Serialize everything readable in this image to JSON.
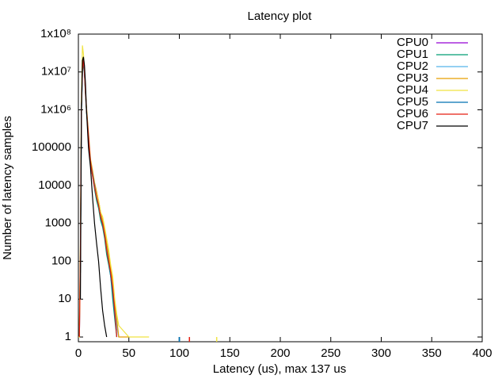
{
  "chart_data": {
    "type": "line",
    "title": "Latency plot",
    "x_label": "Latency (us), max 137 us",
    "y_label": "Number of latency samples",
    "log_y": true,
    "step": true,
    "legend": "top-right",
    "xlim": [
      0,
      400
    ],
    "xticks": [
      0,
      50,
      100,
      150,
      200,
      250,
      300,
      350,
      400
    ],
    "ylim": [
      0.75,
      100000000
    ],
    "yticks": [
      1,
      10,
      100,
      1000,
      10000,
      100000,
      {
        "value": 1000000,
        "label": "1x10⁶"
      },
      {
        "value": 10000000,
        "label": "1x10⁷"
      },
      {
        "value": 100000000,
        "label": "1x10⁸"
      }
    ],
    "x": [
      0,
      1,
      2,
      3,
      4,
      5,
      6,
      7,
      8,
      10,
      12,
      14,
      16,
      18,
      20,
      22,
      24,
      26,
      28,
      30,
      32,
      34,
      36,
      38,
      40,
      50,
      60,
      70,
      100,
      110,
      137
    ],
    "series": [
      {
        "name": "CPU0",
        "color": "#9400d3",
        "values": [
          null,
          1,
          100,
          1000000,
          10000000,
          20000000,
          10000000,
          3000000,
          1000000,
          200000,
          40000,
          20000,
          10000,
          5000,
          3000,
          1500,
          1000,
          500,
          200,
          100,
          50,
          20,
          5,
          2,
          1,
          null,
          null,
          null,
          1,
          null,
          null
        ]
      },
      {
        "name": "CPU1",
        "color": "#009e73",
        "values": [
          null,
          null,
          50,
          800000,
          9000000,
          18000000,
          9000000,
          2500000,
          900000,
          180000,
          35000,
          18000,
          8000,
          4000,
          2500,
          1200,
          800,
          400,
          150,
          80,
          40,
          10,
          3,
          1,
          null,
          null,
          null,
          null,
          1,
          null,
          null
        ]
      },
      {
        "name": "CPU2",
        "color": "#56b4e9",
        "values": [
          null,
          1,
          80,
          900000,
          12000000,
          22000000,
          11000000,
          3000000,
          1100000,
          220000,
          45000,
          20000,
          9000,
          6000,
          3500,
          1800,
          1000,
          600,
          250,
          120,
          60,
          25,
          6,
          2,
          1,
          null,
          null,
          null,
          null,
          null,
          null
        ]
      },
      {
        "name": "CPU3",
        "color": "#e69f00",
        "values": [
          null,
          2,
          200,
          1200000,
          15000000,
          25000000,
          12000000,
          3500000,
          1200000,
          250000,
          50000,
          25000,
          12000,
          7000,
          4000,
          2000,
          1200,
          700,
          300,
          150,
          60,
          30,
          8,
          3,
          1,
          1,
          null,
          null,
          null,
          null,
          null
        ]
      },
      {
        "name": "CPU4",
        "color": "#f0e442",
        "values": [
          1,
          1,
          300,
          2000000,
          50000000,
          30000000,
          12000000,
          3000000,
          1000000,
          200000,
          40000,
          20000,
          10000,
          6000,
          4000,
          2000,
          1500,
          800,
          400,
          200,
          80,
          40,
          10,
          4,
          2,
          1,
          1,
          1,
          null,
          null,
          1
        ]
      },
      {
        "name": "CPU5",
        "color": "#0072b2",
        "values": [
          null,
          null,
          100,
          1000000,
          10000000,
          20000000,
          10000000,
          3000000,
          1000000,
          200000,
          40000,
          20000,
          10000,
          5000,
          3000,
          1500,
          900,
          500,
          200,
          100,
          40,
          15,
          4,
          1,
          null,
          null,
          null,
          null,
          1,
          null,
          null
        ]
      },
      {
        "name": "CPU6",
        "color": "#e51e10",
        "values": [
          null,
          1,
          150,
          1100000,
          11000000,
          21000000,
          10000000,
          3000000,
          1000000,
          200000,
          40000,
          18000,
          9000,
          5000,
          3000,
          1500,
          1000,
          500,
          200,
          100,
          50,
          20,
          5,
          1,
          null,
          null,
          null,
          null,
          null,
          1,
          null
        ]
      },
      {
        "name": "CPU7",
        "color": "#000000",
        "values": [
          null,
          null,
          10,
          1000000,
          20000000,
          25000000,
          15000000,
          5000000,
          1000000,
          100000,
          30000,
          5000,
          1000,
          300,
          100,
          20,
          5,
          2,
          1,
          null,
          null,
          null,
          null,
          null,
          null,
          null,
          null,
          null,
          null,
          null,
          null
        ]
      }
    ]
  }
}
